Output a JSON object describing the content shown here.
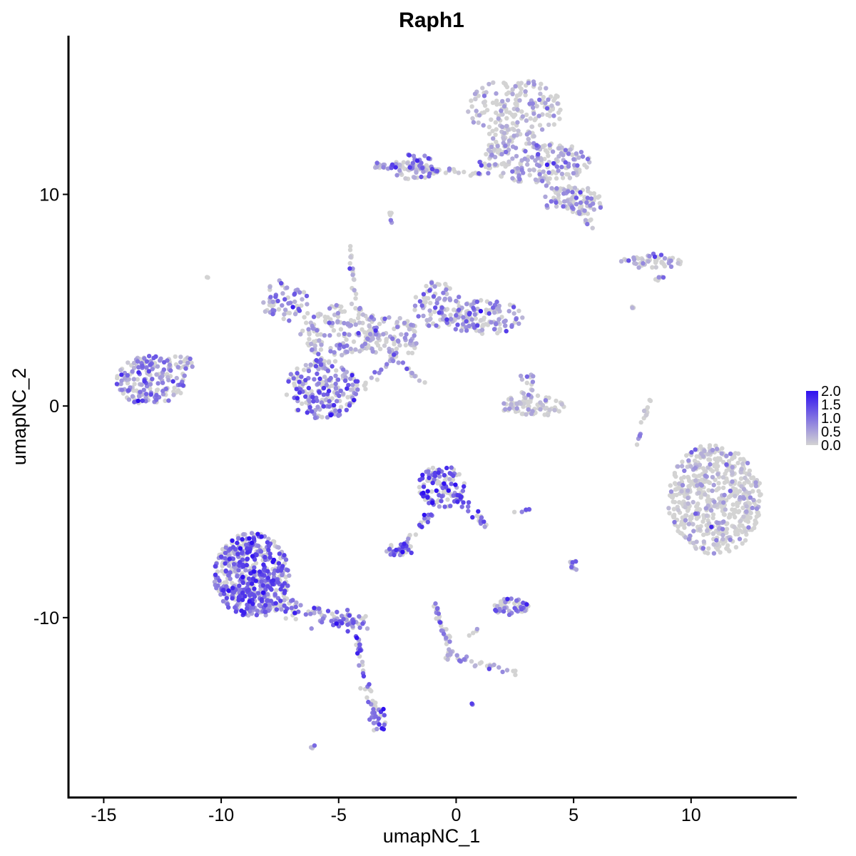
{
  "chart_data": {
    "type": "scatter",
    "title": "Raph1",
    "xlabel": "umapNC_1",
    "ylabel": "umapNC_2",
    "xlim": [
      -16.5,
      14.5
    ],
    "ylim": [
      -18.5,
      17.5
    ],
    "x_ticks": [
      -15,
      -10,
      -5,
      0,
      5,
      10
    ],
    "x_tick_labels": [
      "-15",
      "-10",
      "-5",
      "0",
      "5",
      "10"
    ],
    "y_ticks": [
      -10,
      0,
      10
    ],
    "y_tick_labels": [
      "-10",
      "0",
      "10"
    ],
    "grid": false,
    "legend_position": "right",
    "colors": {
      "low": "#d3d3d3",
      "high": "#2f10f0"
    },
    "color_scale": {
      "min": 0.0,
      "max": 2.0,
      "breaks": [
        2.0,
        1.5,
        1.0,
        0.5,
        0.0
      ],
      "labels": [
        "2.0",
        "1.5",
        "1.0",
        "0.5",
        "0.0"
      ]
    },
    "clusters": [
      {
        "name": "c1",
        "cx": -13.0,
        "cy": 1.2,
        "rx": 1.5,
        "ry": 1.2,
        "n": 180,
        "expr": 0.65
      },
      {
        "name": "c2",
        "cx": -11.8,
        "cy": 2.0,
        "rx": 0.7,
        "ry": 0.4,
        "n": 20,
        "expr": 0.4
      },
      {
        "name": "c3",
        "cx": -7.3,
        "cy": 5.0,
        "rx": 1.0,
        "ry": 1.0,
        "n": 60,
        "expr": 0.6
      },
      {
        "name": "c4",
        "cx": -5.7,
        "cy": 0.8,
        "rx": 1.6,
        "ry": 1.4,
        "n": 200,
        "expr": 0.9
      },
      {
        "name": "c5",
        "cx": -5.0,
        "cy": 3.6,
        "rx": 1.8,
        "ry": 1.2,
        "n": 140,
        "expr": 0.35
      },
      {
        "name": "c6",
        "cx": -2.8,
        "cy": 3.2,
        "rx": 1.3,
        "ry": 1.0,
        "n": 90,
        "expr": 0.4
      },
      {
        "name": "c7",
        "cx": -0.8,
        "cy": 4.8,
        "rx": 1.0,
        "ry": 1.1,
        "n": 80,
        "expr": 0.55
      },
      {
        "name": "c8",
        "cx": 1.2,
        "cy": 4.2,
        "rx": 1.8,
        "ry": 0.8,
        "n": 130,
        "expr": 0.55
      },
      {
        "name": "c9",
        "cx": 2.5,
        "cy": 14.0,
        "rx": 2.0,
        "ry": 1.5,
        "n": 180,
        "expr": 0.1
      },
      {
        "name": "c10",
        "cx": 3.5,
        "cy": 11.5,
        "rx": 2.2,
        "ry": 1.0,
        "n": 180,
        "expr": 0.5
      },
      {
        "name": "c11",
        "cx": 5.0,
        "cy": 9.7,
        "rx": 1.3,
        "ry": 0.7,
        "n": 80,
        "expr": 0.3
      },
      {
        "name": "c12",
        "cx": -1.8,
        "cy": 11.3,
        "rx": 1.0,
        "ry": 0.6,
        "n": 60,
        "expr": 0.8
      },
      {
        "name": "c13",
        "cx": 8.3,
        "cy": 6.8,
        "rx": 1.3,
        "ry": 0.3,
        "n": 40,
        "expr": 0.15
      },
      {
        "name": "c14",
        "cx": 3.2,
        "cy": 0.0,
        "rx": 1.4,
        "ry": 0.5,
        "n": 90,
        "expr": 0.05
      },
      {
        "name": "c15",
        "cx": 3.0,
        "cy": 1.0,
        "rx": 0.4,
        "ry": 0.6,
        "n": 15,
        "expr": 0.5
      },
      {
        "name": "c16",
        "cx": 11.0,
        "cy": -4.4,
        "rx": 2.0,
        "ry": 2.6,
        "n": 550,
        "expr": 0.02
      },
      {
        "name": "c17",
        "cx": -0.6,
        "cy": -3.8,
        "rx": 1.0,
        "ry": 1.0,
        "n": 120,
        "expr": 1.2
      },
      {
        "name": "c18",
        "cx": -2.4,
        "cy": -6.8,
        "rx": 0.6,
        "ry": 0.3,
        "n": 35,
        "expr": 1.0
      },
      {
        "name": "c19",
        "cx": 2.3,
        "cy": -9.5,
        "rx": 0.8,
        "ry": 0.4,
        "n": 50,
        "expr": 0.9
      },
      {
        "name": "c20",
        "cx": 5.0,
        "cy": -7.5,
        "rx": 0.2,
        "ry": 0.3,
        "n": 10,
        "expr": 0.7
      },
      {
        "name": "c21",
        "cx": -8.7,
        "cy": -8.0,
        "rx": 1.6,
        "ry": 2.0,
        "n": 520,
        "expr": 1.1
      },
      {
        "name": "c22",
        "cx": -3.3,
        "cy": -14.8,
        "rx": 0.3,
        "ry": 0.7,
        "n": 25,
        "expr": 1.0
      },
      {
        "name": "c23",
        "cx": 8.3,
        "cy": 7.0,
        "rx": 0.6,
        "ry": 0.2,
        "n": 10,
        "expr": 0.7
      }
    ],
    "bridges": [
      {
        "from": [
          -9.0,
          -9.0
        ],
        "to": [
          -4.0,
          -10.3
        ],
        "n": 140,
        "spread": 0.5,
        "expr": 0.8
      },
      {
        "from": [
          -4.3,
          -10.5
        ],
        "to": [
          -3.5,
          -14.8
        ],
        "n": 40,
        "spread": 0.2,
        "expr": 0.8
      },
      {
        "from": [
          -1.0,
          -5.0
        ],
        "to": [
          -2.4,
          -6.8
        ],
        "n": 30,
        "spread": 0.15,
        "expr": 0.9
      },
      {
        "from": [
          0.0,
          -4.2
        ],
        "to": [
          1.2,
          -5.6
        ],
        "n": 25,
        "spread": 0.2,
        "expr": 0.9
      },
      {
        "from": [
          -1.0,
          -9.2
        ],
        "to": [
          -0.2,
          -11.6
        ],
        "n": 30,
        "spread": 0.12,
        "expr": 0.7
      },
      {
        "from": [
          -0.4,
          -11.8
        ],
        "to": [
          2.6,
          -12.6
        ],
        "n": 30,
        "spread": 0.15,
        "expr": 0.5
      },
      {
        "from": [
          -0.4,
          -11.8
        ],
        "to": [
          1.0,
          -10.5
        ],
        "n": 8,
        "spread": 0.1,
        "expr": 0.4
      },
      {
        "from": [
          -3.5,
          11.4
        ],
        "to": [
          1.2,
          11.0
        ],
        "n": 60,
        "spread": 0.15,
        "expr": 0.4
      },
      {
        "from": [
          1.2,
          11.3
        ],
        "to": [
          2.3,
          13.0
        ],
        "n": 40,
        "spread": 0.4,
        "expr": 0.2
      },
      {
        "from": [
          4.0,
          10.7
        ],
        "to": [
          5.8,
          8.6
        ],
        "n": 30,
        "spread": 0.3,
        "expr": 0.4
      },
      {
        "from": [
          -4.5,
          7.5
        ],
        "to": [
          -4.2,
          4.0
        ],
        "n": 20,
        "spread": 0.12,
        "expr": 0.3
      },
      {
        "from": [
          -3.0,
          2.8
        ],
        "to": [
          -1.2,
          0.8
        ],
        "n": 20,
        "spread": 0.12,
        "expr": 0.2
      },
      {
        "from": [
          -6.2,
          3.0
        ],
        "to": [
          -5.6,
          1.7
        ],
        "n": 20,
        "spread": 0.2,
        "expr": 0.4
      },
      {
        "from": [
          -2.5,
          2.5
        ],
        "to": [
          -4.2,
          0.5
        ],
        "n": 20,
        "spread": 0.15,
        "expr": 0.3
      },
      {
        "from": [
          8.3,
          0.5
        ],
        "to": [
          7.7,
          -1.8
        ],
        "n": 15,
        "spread": 0.1,
        "expr": 0.4
      },
      {
        "from": [
          -6.0,
          -16.0
        ],
        "to": [
          -6.2,
          -16.2
        ],
        "n": 4,
        "spread": 0.05,
        "expr": 0.5
      },
      {
        "from": [
          -2.8,
          9.2
        ],
        "to": [
          -2.7,
          8.6
        ],
        "n": 6,
        "spread": 0.1,
        "expr": 0.1
      },
      {
        "from": [
          8.8,
          6.2
        ],
        "to": [
          8.4,
          5.8
        ],
        "n": 6,
        "spread": 0.1,
        "expr": 0.1
      },
      {
        "from": [
          7.5,
          4.7
        ],
        "to": [
          7.7,
          4.4
        ],
        "n": 3,
        "spread": 0.05,
        "expr": 0.1
      },
      {
        "from": [
          -10.5,
          6.0
        ],
        "to": [
          -10.6,
          6.1
        ],
        "n": 2,
        "spread": 0.03,
        "expr": 0.2
      },
      {
        "from": [
          0.6,
          -14.0
        ],
        "to": [
          0.7,
          -14.1
        ],
        "n": 3,
        "spread": 0.03,
        "expr": 1.0
      },
      {
        "from": [
          2.3,
          -5.0
        ],
        "to": [
          3.2,
          -4.9
        ],
        "n": 6,
        "spread": 0.05,
        "expr": 0.5
      }
    ]
  }
}
